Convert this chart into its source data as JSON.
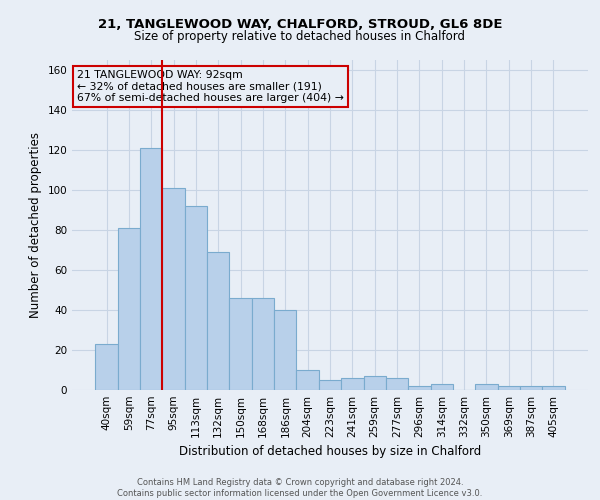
{
  "title1": "21, TANGLEWOOD WAY, CHALFORD, STROUD, GL6 8DE",
  "title2": "Size of property relative to detached houses in Chalford",
  "xlabel": "Distribution of detached houses by size in Chalford",
  "ylabel": "Number of detached properties",
  "categories": [
    "40sqm",
    "59sqm",
    "77sqm",
    "95sqm",
    "113sqm",
    "132sqm",
    "150sqm",
    "168sqm",
    "186sqm",
    "204sqm",
    "223sqm",
    "241sqm",
    "259sqm",
    "277sqm",
    "296sqm",
    "314sqm",
    "332sqm",
    "350sqm",
    "369sqm",
    "387sqm",
    "405sqm"
  ],
  "values": [
    23,
    81,
    121,
    101,
    92,
    69,
    46,
    46,
    40,
    10,
    5,
    6,
    7,
    6,
    2,
    3,
    0,
    3,
    2,
    2,
    2
  ],
  "bar_color": "#b8d0ea",
  "bar_edge_color": "#7aabce",
  "vline_color": "#cc0000",
  "annotation_text": "21 TANGLEWOOD WAY: 92sqm\n← 32% of detached houses are smaller (191)\n67% of semi-detached houses are larger (404) →",
  "annotation_box_color": "#cc0000",
  "ylim": [
    0,
    165
  ],
  "yticks": [
    0,
    20,
    40,
    60,
    80,
    100,
    120,
    140,
    160
  ],
  "grid_color": "#c8d4e4",
  "bg_color": "#e8eef6",
  "footer": "Contains HM Land Registry data © Crown copyright and database right 2024.\nContains public sector information licensed under the Open Government Licence v3.0."
}
